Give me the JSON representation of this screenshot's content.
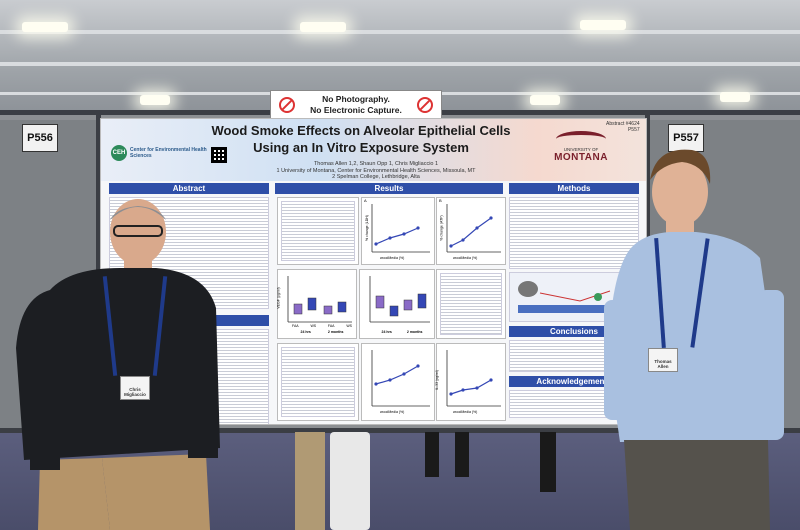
{
  "signs": {
    "booth_left": "P556",
    "booth_right": "P557",
    "no_photo_line1": "No Photography.",
    "no_photo_line2": "No Electronic Capture."
  },
  "poster": {
    "title_line1": "Wood Smoke Effects on Alveolar Epithelial Cells",
    "title_line2": "Using an In Vitro Exposure System",
    "authors": "Thomas Allen 1,2, Shaun Opp 1, Chris Migliaccio 1",
    "affiliation1": "1 University of Montana, Center for Environmental Health Sciences, Missoula, MT",
    "affiliation2": "2 Spelman College, Lethbridge, Alta",
    "abstract_no": "Abstract #4624",
    "poster_no": "P557",
    "umt_small": "UNIVERSITY OF",
    "umt_big": "MONTANA",
    "ceh_initials": "CEH",
    "ceh_text": "Center for Environmental Health Sciences",
    "sections": {
      "abstract": "Abstract",
      "results": "Results",
      "methods": "Methods",
      "conclusions": "Conclusions",
      "acknowledgements": "Acknowledgements"
    },
    "fig_axis_x": "woodMedia (%)",
    "fig_axis_y1": "% change (LDH)",
    "fig_axis_y2": "% change (ATP)",
    "fig_axis_y3": "VEGF (pg/ml)",
    "fig_axis_y4": "IL-33 (pg/ml)",
    "group_labels": [
      "FAA",
      "WS",
      "FAA",
      "WS"
    ],
    "time_labels": [
      "24 hrs",
      "2 months"
    ]
  },
  "people": {
    "left_badge": "Chris Migliaccio",
    "right_badge": "Thomas Allen"
  },
  "colors": {
    "section_header": "#2f4fa8",
    "umt_maroon": "#7a1f2b",
    "lanyard": "#1f3a8a"
  }
}
